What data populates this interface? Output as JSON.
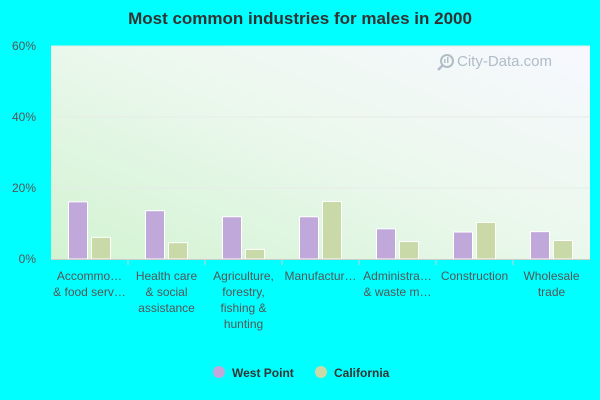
{
  "chart_data": {
    "type": "bar",
    "title": "Most common industries for males in 2000",
    "xlabel": "",
    "ylabel": "",
    "ylim": [
      0,
      60
    ],
    "yticks": [
      "0%",
      "20%",
      "40%",
      "60%"
    ],
    "grid": true,
    "legend_position": "bottom",
    "categories": [
      [
        "Accommo…",
        "& food serv…"
      ],
      [
        "Health care",
        "& social",
        "assistance"
      ],
      [
        "Agriculture,",
        "forestry,",
        "fishing &",
        "hunting"
      ],
      [
        "Manufactur…"
      ],
      [
        "Administra…",
        "& waste m…"
      ],
      [
        "Construction"
      ],
      [
        "Wholesale",
        "trade"
      ]
    ],
    "series": [
      {
        "name": "West Point",
        "color": "#c0a9da",
        "values": [
          16.1,
          13.6,
          11.9,
          11.9,
          8.5,
          7.6,
          7.7
        ]
      },
      {
        "name": "California",
        "color": "#c9d9a7",
        "values": [
          6.1,
          4.6,
          2.7,
          16.2,
          4.9,
          10.3,
          5.2
        ]
      }
    ]
  },
  "watermark": {
    "text": "City-Data.com",
    "icon": "magnifier-chart-icon"
  },
  "colors": {
    "background": "#00ffff",
    "bar_stroke": "#ffffff",
    "axis": "#cccccc"
  }
}
